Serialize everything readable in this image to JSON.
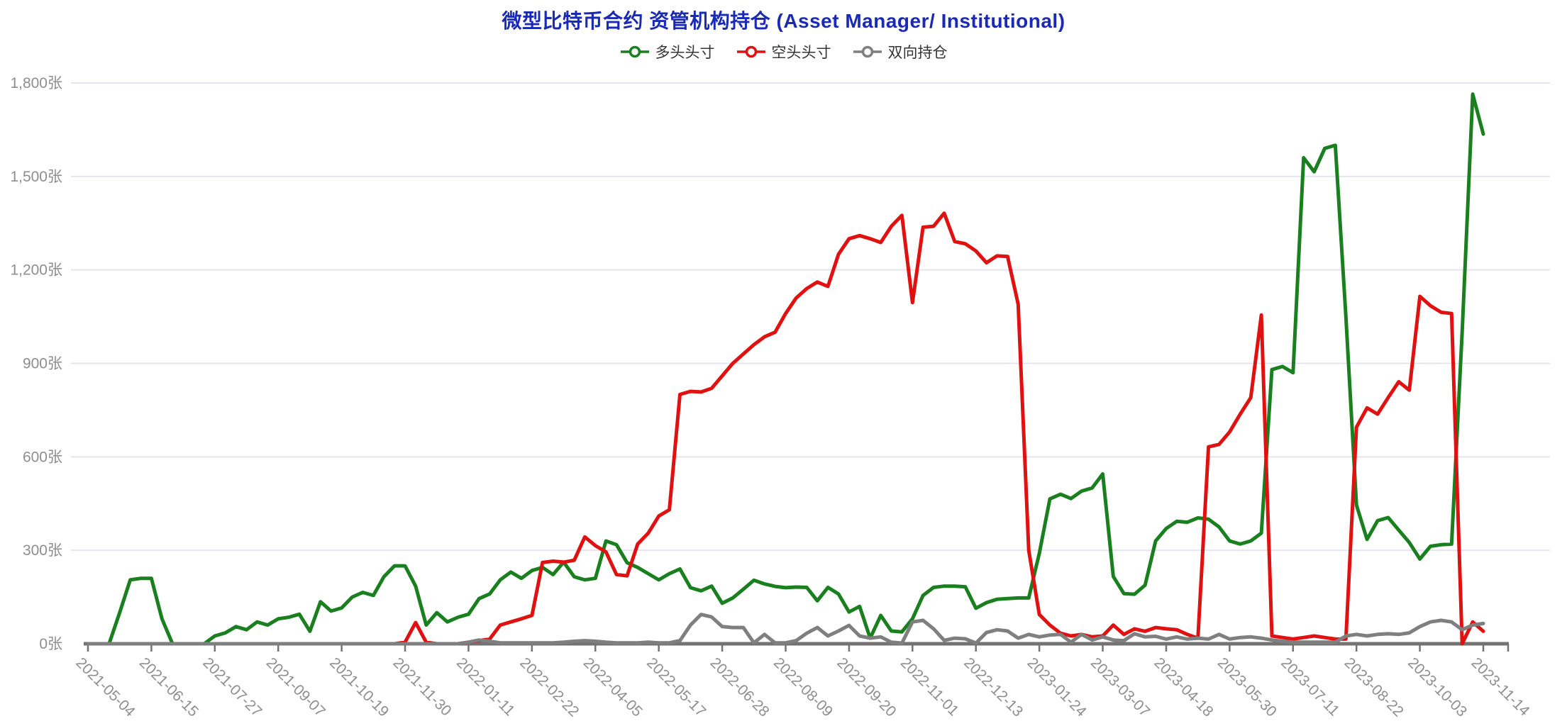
{
  "header": {
    "title": "微型比特币合约 资管机构持仓 (Asset Manager/ Institutional)"
  },
  "colors": {
    "title": "#1a2ab5",
    "long_series": "#1a7f1e",
    "short_series": "#e01111",
    "dual_series": "#7f7f7f",
    "axis_label": "#8e8e8e",
    "gridline": "#e4e4f0",
    "axis_line": "#737373",
    "legend_text": "#333333",
    "background": "#ffffff"
  },
  "chart_data": {
    "type": "line",
    "title": "微型比特币合约 资管机构持仓 (Asset Manager/ Institutional)",
    "xlabel": "",
    "ylabel": "",
    "unit": "张",
    "ylim": [
      0,
      1800
    ],
    "grid": true,
    "legend_position": "top",
    "y_tick_values": [
      0,
      300,
      600,
      900,
      1200,
      1500,
      1800
    ],
    "y_tick_labels": [
      "0张",
      "300张",
      "600张",
      "900张",
      "1,200张",
      "1,500张",
      "1,800张"
    ],
    "x_tick_interval_weeks": 6,
    "x_tick_labels": [
      "2021-05-04",
      "2021-06-15",
      "2021-07-27",
      "2021-09-07",
      "2021-10-19",
      "2021-11-30",
      "2022-01-11",
      "2022-02-22",
      "2022-04-05",
      "2022-05-17",
      "2022-06-28",
      "2022-08-09",
      "2022-09-20",
      "2022-11-01",
      "2022-12-13",
      "2023-01-24",
      "2023-03-07",
      "2023-04-18",
      "2023-05-30",
      "2023-07-11",
      "2023-08-22",
      "2023-10-03",
      "2023-11-14"
    ],
    "legend": [
      {
        "name": "多头头寸",
        "color": "#1a7f1e"
      },
      {
        "name": "空头头寸",
        "color": "#e01111"
      },
      {
        "name": "双向持仓",
        "color": "#7f7f7f"
      }
    ],
    "series": [
      {
        "name": "多头头寸",
        "color": "#1a7f1e",
        "values": [
          0,
          0,
          0,
          100,
          205,
          210,
          210,
          80,
          0,
          0,
          0,
          0,
          25,
          35,
          55,
          45,
          70,
          60,
          80,
          85,
          95,
          40,
          135,
          105,
          115,
          150,
          165,
          155,
          215,
          250,
          250,
          185,
          60,
          100,
          70,
          85,
          95,
          145,
          160,
          205,
          230,
          210,
          235,
          245,
          222,
          262,
          215,
          205,
          210,
          330,
          318,
          260,
          245,
          225,
          205,
          225,
          240,
          180,
          170,
          185,
          130,
          147,
          175,
          204,
          192,
          184,
          180,
          182,
          181,
          138,
          181,
          160,
          102,
          120,
          18,
          91,
          41,
          38,
          80,
          155,
          181,
          185,
          185,
          183,
          114,
          132,
          143,
          145,
          147,
          147,
          290,
          465,
          480,
          466,
          490,
          500,
          545,
          216,
          161,
          159,
          188,
          330,
          370,
          393,
          390,
          404,
          400,
          375,
          330,
          320,
          330,
          355,
          880,
          890,
          870,
          1560,
          1515,
          1590,
          1600,
          1050,
          445,
          335,
          395,
          405,
          365,
          325,
          272,
          313,
          318,
          320,
          1000,
          1764,
          1636
        ]
      },
      {
        "name": "空头头寸",
        "color": "#e01111",
        "values": [
          0,
          0,
          0,
          0,
          0,
          0,
          0,
          0,
          0,
          0,
          0,
          0,
          0,
          0,
          0,
          0,
          0,
          0,
          0,
          0,
          0,
          0,
          0,
          0,
          0,
          0,
          0,
          0,
          0,
          0,
          5,
          68,
          5,
          0,
          0,
          0,
          5,
          10,
          15,
          60,
          70,
          80,
          91,
          261,
          265,
          262,
          268,
          343,
          315,
          295,
          222,
          218,
          320,
          355,
          410,
          430,
          800,
          810,
          808,
          820,
          860,
          900,
          930,
          960,
          985,
          1000,
          1060,
          1110,
          1140,
          1161,
          1147,
          1250,
          1300,
          1310,
          1300,
          1288,
          1340,
          1375,
          1095,
          1337,
          1340,
          1382,
          1291,
          1284,
          1261,
          1223,
          1245,
          1243,
          1090,
          300,
          94,
          60,
          34,
          25,
          30,
          22,
          25,
          60,
          30,
          48,
          40,
          52,
          48,
          45,
          30,
          18,
          632,
          640,
          680,
          737,
          790,
          1055,
          25,
          20,
          15,
          20,
          25,
          20,
          15,
          15,
          695,
          757,
          737,
          790,
          841,
          814,
          1115,
          1085,
          1064,
          1060,
          0,
          70,
          40
        ]
      },
      {
        "name": "双向持仓",
        "color": "#7f7f7f",
        "values": [
          0,
          0,
          0,
          0,
          0,
          0,
          0,
          0,
          0,
          0,
          0,
          0,
          0,
          0,
          0,
          0,
          0,
          0,
          0,
          0,
          0,
          0,
          0,
          0,
          0,
          0,
          0,
          0,
          0,
          0,
          0,
          0,
          0,
          0,
          0,
          0,
          5,
          12,
          8,
          3,
          3,
          3,
          3,
          3,
          3,
          5,
          8,
          10,
          8,
          5,
          3,
          3,
          3,
          5,
          3,
          3,
          10,
          60,
          94,
          86,
          55,
          52,
          52,
          3,
          30,
          3,
          3,
          10,
          34,
          52,
          25,
          41,
          59,
          25,
          18,
          22,
          5,
          2,
          70,
          75,
          48,
          11,
          18,
          16,
          2,
          36,
          45,
          41,
          18,
          30,
          22,
          28,
          30,
          5,
          30,
          12,
          22,
          12,
          10,
          32,
          22,
          24,
          15,
          22,
          15,
          18,
          15,
          30,
          15,
          20,
          22,
          18,
          12,
          8,
          5,
          5,
          5,
          5,
          5,
          25,
          30,
          25,
          30,
          32,
          30,
          35,
          55,
          70,
          75,
          70,
          45,
          60,
          65
        ]
      }
    ]
  }
}
